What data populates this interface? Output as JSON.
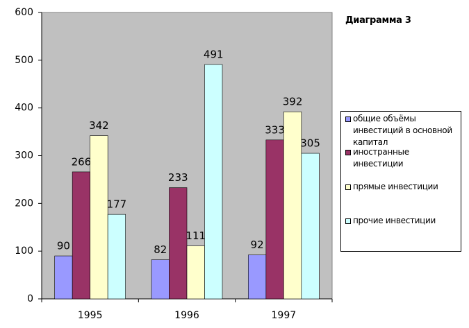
{
  "chart_data": {
    "type": "bar",
    "title": "Диаграмма 3",
    "categories": [
      "1995",
      "1996",
      "1997"
    ],
    "series": [
      {
        "name": "общие объёмы инвестиций в основной капитал",
        "color": "#9999ff",
        "values": [
          90,
          82,
          92
        ]
      },
      {
        "name": "иностранные инвестиции",
        "color": "#993366",
        "values": [
          266,
          233,
          333
        ]
      },
      {
        "name": "прямые инвестиции",
        "color": "#ffffcc",
        "values": [
          342,
          111,
          392
        ]
      },
      {
        "name": "прочие инвестиции",
        "color": "#ccffff",
        "values": [
          177,
          491,
          305
        ]
      }
    ],
    "ylim": [
      0,
      600
    ],
    "yticks": [
      0,
      100,
      200,
      300,
      400,
      500,
      600
    ],
    "plot_background": "#c0c0c0",
    "legend": "right"
  }
}
